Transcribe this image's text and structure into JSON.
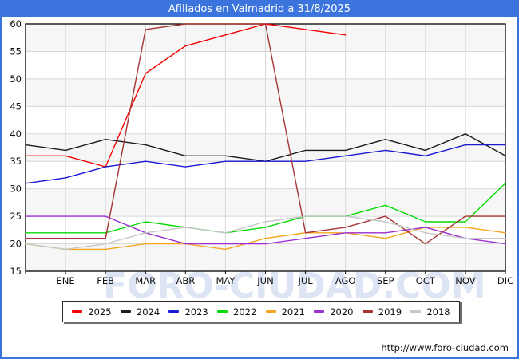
{
  "header": {
    "title": "Afiliados en Valmadrid a 31/8/2025",
    "bar_color": "#3b74dc"
  },
  "watermark": {
    "text": "FORO-CIUDAD.COM"
  },
  "footer": {
    "url": "http://www.foro-ciudad.com"
  },
  "chart_data": {
    "type": "line",
    "title": "Afiliados en Valmadrid a 31/8/2025",
    "categories": [
      "",
      "ENE",
      "FEB",
      "MAR",
      "ABR",
      "MAY",
      "JUN",
      "JUL",
      "AGO",
      "SEP",
      "OCT",
      "NOV",
      "DIC"
    ],
    "xlabel": "",
    "ylabel": "",
    "ylim": [
      15,
      60
    ],
    "ytick_step": 5,
    "grid": true,
    "stripe_colors": [
      "#f6f6f6",
      "#ffffff"
    ],
    "gridline_color": "#d8d8d8",
    "legend_position": "bottom",
    "series": [
      {
        "name": "2025",
        "color": "#f40000",
        "values": [
          36,
          36,
          34,
          51,
          56,
          58,
          60,
          59,
          58
        ]
      },
      {
        "name": "2024",
        "color": "#1c1c1c",
        "values": [
          38,
          37,
          39,
          38,
          36,
          36,
          35,
          37,
          37,
          39,
          37,
          40,
          36
        ]
      },
      {
        "name": "2023",
        "color": "#1a1ad2",
        "values": [
          31,
          32,
          34,
          35,
          34,
          35,
          35,
          35,
          36,
          37,
          36,
          38,
          38
        ]
      },
      {
        "name": "2022",
        "color": "#06da06",
        "values": [
          22,
          22,
          22,
          24,
          23,
          22,
          23,
          25,
          25,
          27,
          24,
          24,
          31
        ]
      },
      {
        "name": "2021",
        "color": "#f5a61d",
        "values": [
          20,
          19,
          19,
          20,
          20,
          19,
          21,
          22,
          22,
          21,
          23,
          23,
          22
        ]
      },
      {
        "name": "2020",
        "color": "#9c2fd6",
        "values": [
          25,
          25,
          25,
          22,
          20,
          20,
          20,
          21,
          22,
          22,
          23,
          21,
          20
        ]
      },
      {
        "name": "2019",
        "color": "#a53434",
        "values": [
          21,
          21,
          21,
          59,
          60,
          60,
          60,
          22,
          23,
          25,
          20,
          25,
          25
        ]
      },
      {
        "name": "2018",
        "color": "#c7c7c7",
        "values": [
          20,
          19,
          20,
          22,
          23,
          22,
          24,
          25,
          25,
          24,
          22,
          21,
          21
        ]
      }
    ]
  }
}
